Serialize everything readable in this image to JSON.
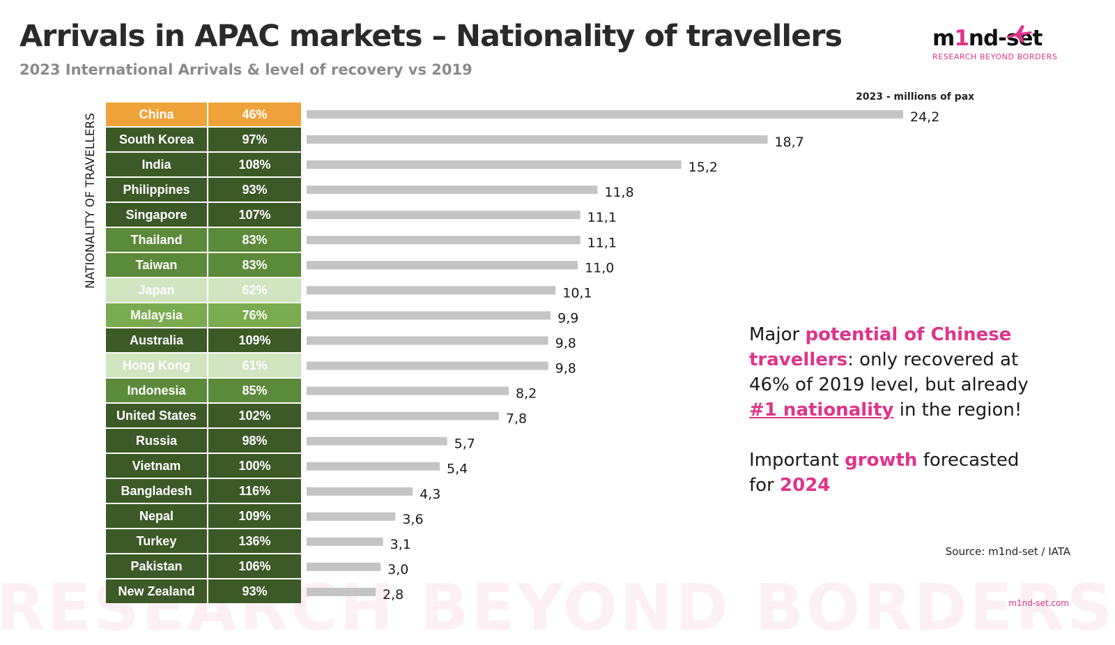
{
  "title": "Arrivals in APAC markets – Nationality of travellers",
  "subtitle": "2023 International Arrivals & level of recovery vs 2019",
  "logo": {
    "word_before": "m",
    "word_hl": "1",
    "word_after": "nd-set",
    "tagline": "RESEARCH BEYOND BORDERS",
    "icon": "plane-icon"
  },
  "watermark": "RESEARCH BEYOND BORDERS",
  "colors": {
    "china": "#eea23a",
    "dark_green": "#3c5a27",
    "mid_green": "#5a8a3a",
    "light_green": "#7aab4f",
    "pale_green": "#cfe4bf",
    "bar": "#c4c4c4",
    "accent": "#e0338a"
  },
  "callout": {
    "p1_a": "Major ",
    "p1_b": "potential of Chinese travellers",
    "p1_c": ": only recovered at 46% of 2019 level, but already ",
    "p1_d": "#1 nationality",
    "p1_e": " in the region!",
    "p2_a": "Important ",
    "p2_b": "growth",
    "p2_c": " forecasted for ",
    "p2_d": "2024"
  },
  "source": "Source: m1nd-set / IATA",
  "site": "m1nd-set.com",
  "chart_data": {
    "type": "bar",
    "orientation": "horizontal",
    "ylabel": "NATIONALITY OF TRAVELLERS",
    "value_label": "2023 - millions of pax",
    "xlim": [
      0,
      26
    ],
    "grid": false,
    "categories": [
      "China",
      "South Korea",
      "India",
      "Philippines",
      "Singapore",
      "Thailand",
      "Taiwan",
      "Japan",
      "Malaysia",
      "Australia",
      "Hong Kong",
      "Indonesia",
      "United States",
      "Russia",
      "Vietnam",
      "Bangladesh",
      "Nepal",
      "Turkey",
      "Pakistan",
      "New Zealand"
    ],
    "values": [
      24.2,
      18.7,
      15.2,
      11.8,
      11.1,
      11.1,
      11.0,
      10.1,
      9.9,
      9.8,
      9.8,
      8.2,
      7.8,
      5.7,
      5.4,
      4.3,
      3.6,
      3.1,
      3.0,
      2.8
    ],
    "value_labels": [
      "24,2",
      "18,7",
      "15,2",
      "11,8",
      "11,1",
      "11,1",
      "11,0",
      "10,1",
      "9,9",
      "9,8",
      "9,8",
      "8,2",
      "7,8",
      "5,7",
      "5,4",
      "4,3",
      "3,6",
      "3,1",
      "3,0",
      "2,8"
    ],
    "recovery_labels": [
      "46%",
      "97%",
      "108%",
      "93%",
      "107%",
      "83%",
      "83%",
      "62%",
      "76%",
      "109%",
      "61%",
      "85%",
      "102%",
      "98%",
      "100%",
      "116%",
      "109%",
      "136%",
      "106%",
      "93%"
    ],
    "row_colors": [
      "china",
      "dark_green",
      "dark_green",
      "dark_green",
      "dark_green",
      "mid_green",
      "mid_green",
      "pale_green",
      "light_green",
      "dark_green",
      "pale_green",
      "mid_green",
      "dark_green",
      "dark_green",
      "dark_green",
      "dark_green",
      "dark_green",
      "dark_green",
      "dark_green",
      "dark_green"
    ]
  }
}
